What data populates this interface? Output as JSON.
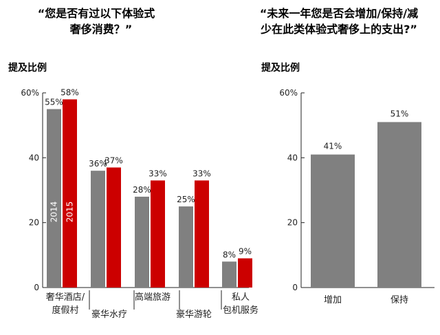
{
  "chart_data": [
    {
      "type": "bar",
      "title_lines": [
        "“您是否有过以下体验式",
        "奢侈消费？”"
      ],
      "ylabel": "提及比例",
      "ylim": [
        0,
        60
      ],
      "yticks": [
        "0",
        "20",
        "40",
        "60%"
      ],
      "categories": [
        [
          "奢华酒店/",
          "度假村"
        ],
        [
          "豪华水疗"
        ],
        [
          "高端旅游"
        ],
        [
          "豪华游轮"
        ],
        [
          "私人",
          "包机服务"
        ]
      ],
      "series": [
        {
          "name": "2014",
          "color": "#808080",
          "values": [
            55,
            36,
            28,
            25,
            8
          ],
          "labels": [
            "55%",
            "36%",
            "28%",
            "25%",
            "8%"
          ]
        },
        {
          "name": "2015",
          "color": "#cc0000",
          "values": [
            58,
            37,
            33,
            33,
            9
          ],
          "labels": [
            "58%",
            "37%",
            "33%",
            "33%",
            "9%"
          ]
        }
      ]
    },
    {
      "type": "bar",
      "title_lines": [
        "“未来一年您是否会增加/保持/减",
        "少在此类体验式奢侈上的支出?”"
      ],
      "ylabel": "提及比例",
      "ylim": [
        0,
        60
      ],
      "yticks": [
        "0",
        "20",
        "40",
        "60%"
      ],
      "categories": [
        "增加",
        "保持"
      ],
      "series": [
        {
          "color": "#808080",
          "values": [
            41,
            51
          ],
          "labels": [
            "41%",
            "51%"
          ]
        }
      ]
    }
  ]
}
